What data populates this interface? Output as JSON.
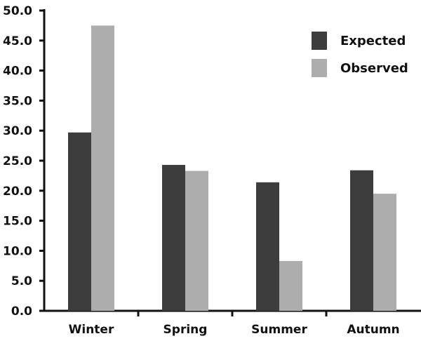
{
  "chart_data": {
    "type": "bar",
    "categories": [
      "Winter",
      "Spring",
      "Summer",
      "Autumn"
    ],
    "series": [
      {
        "name": "Expected",
        "color": "#3d3d3d",
        "values": [
          29.7,
          24.3,
          21.4,
          23.4
        ]
      },
      {
        "name": "Observed",
        "color": "#adadad",
        "values": [
          47.5,
          23.3,
          8.3,
          19.5
        ]
      }
    ],
    "yticks": [
      "0.0",
      "5.0",
      "10.0",
      "15.0",
      "20.0",
      "25.0",
      "30.0",
      "35.0",
      "40.0",
      "45.0",
      "50.0"
    ],
    "ylim": [
      0,
      50
    ],
    "grid": false,
    "legend_position": "top-right"
  }
}
